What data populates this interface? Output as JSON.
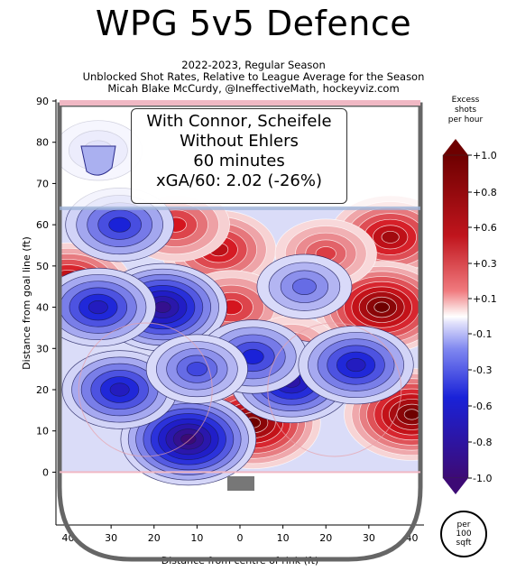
{
  "title": "WPG 5v5 Defence",
  "subtitle_lines": [
    "2022-2023, Regular Season",
    "Unblocked Shot Rates, Relative to League Average for the Season",
    "Micah Blake McCurdy, @IneffectiveMath, hockeyviz.com"
  ],
  "annotation_lines": [
    "With Connor, Scheifele",
    "Without Ehlers",
    "60 minutes",
    "xGA/60: 2.02 (-26%)"
  ],
  "colorbar": {
    "title_lines": [
      "Excess",
      "shots",
      "per hour"
    ],
    "ticks": [
      "+1.0",
      "+0.8",
      "+0.6",
      "+0.3",
      "+0.1",
      "-0.1",
      "-0.3",
      "-0.6",
      "-0.8",
      "-1.0"
    ],
    "unit_lines": [
      "per",
      "100",
      "sqft"
    ]
  },
  "chart_data": {
    "type": "heatmap",
    "xlabel": "Distance from centre of rink (ft)",
    "ylabel": "Distance from goal line (ft)",
    "xlim": [
      42,
      -42
    ],
    "ylim": [
      -8,
      90
    ],
    "x_ticks": [
      40,
      30,
      20,
      10,
      0,
      10,
      20,
      30,
      40
    ],
    "y_ticks": [
      0,
      10,
      20,
      30,
      40,
      50,
      60,
      70,
      80,
      90
    ],
    "color_scale": {
      "min": -1.0,
      "max": 1.0,
      "negative": "#1a22d8",
      "positive": "#d4151e",
      "deep_negative": "#3d0a75",
      "deep_positive": "#6e0000"
    },
    "hotspots": [
      {
        "x": 40,
        "y": 45,
        "value": 0.9
      },
      {
        "x": -35,
        "y": 57,
        "value": 0.8
      },
      {
        "x": -33,
        "y": 40,
        "value": 1.0
      },
      {
        "x": -40,
        "y": 14,
        "value": 1.0
      },
      {
        "x": 5,
        "y": 54,
        "value": 0.7
      },
      {
        "x": -3,
        "y": 12,
        "value": 1.0
      },
      {
        "x": 2,
        "y": 40,
        "value": 0.6
      },
      {
        "x": -20,
        "y": 53,
        "value": 0.5
      },
      {
        "x": 15,
        "y": 60,
        "value": 0.6
      },
      {
        "x": -12,
        "y": 30,
        "value": 0.4
      },
      {
        "x": 18,
        "y": 40,
        "value": -0.9
      },
      {
        "x": 12,
        "y": 8,
        "value": -1.0
      },
      {
        "x": -12,
        "y": 22,
        "value": -0.8
      },
      {
        "x": -3,
        "y": 28,
        "value": -0.6
      },
      {
        "x": 28,
        "y": 20,
        "value": -0.7
      },
      {
        "x": 33,
        "y": 40,
        "value": -0.7
      },
      {
        "x": 28,
        "y": 60,
        "value": -0.6
      },
      {
        "x": -27,
        "y": 26,
        "value": -0.7
      },
      {
        "x": 10,
        "y": 25,
        "value": -0.5
      },
      {
        "x": 33,
        "y": 78,
        "value": -0.3
      },
      {
        "x": -15,
        "y": 45,
        "value": -0.4
      }
    ]
  }
}
